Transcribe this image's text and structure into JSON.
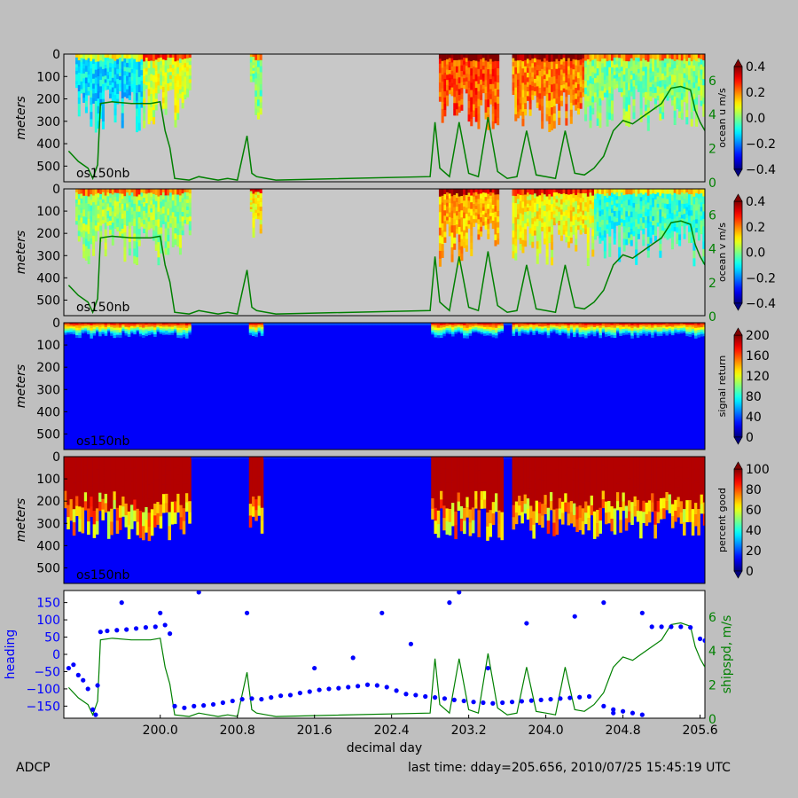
{
  "footer": {
    "left": "ADCP",
    "right": "last time: dday=205.656,  2010/07/25 15:45:19 UTC"
  },
  "colors": {
    "background": "#bfbfbf",
    "nodata": "#c8c8c8",
    "ship_speed": "#008000",
    "heading": "#0000ff"
  },
  "chart_data": [
    {
      "type": "heatmap",
      "panel_label": "os150nb",
      "ylabel": "meters",
      "yticks": [
        "0",
        "100",
        "200",
        "300",
        "400",
        "500"
      ],
      "ylim": [
        570,
        0
      ],
      "colorbar_label": "ocean u m/s",
      "colorbar_ticks": [
        "0.4",
        "0.2",
        "0.0",
        "−0.2",
        "−0.4"
      ],
      "clim": [
        -0.45,
        0.45
      ],
      "colormap": "jet",
      "right_axis_ticks": [
        "0",
        "2",
        "4",
        "6"
      ],
      "right_axis_color": "#008000",
      "coverage": [
        [
          199.12,
          200.3
        ],
        [
          200.93,
          201.04
        ],
        [
          202.89,
          203.5
        ],
        [
          203.65,
          205.65
        ]
      ],
      "note_regions": [
        {
          "x": [
            199.2,
            199.8
          ],
          "sign": "negative"
        },
        {
          "x": [
            202.9,
            203.5
          ],
          "sign": "positive"
        },
        {
          "x": [
            203.7,
            204.4
          ],
          "sign": "positive"
        },
        {
          "x": [
            204.5,
            205.6
          ],
          "sign": "mixed"
        }
      ]
    },
    {
      "type": "heatmap",
      "panel_label": "os150nb",
      "ylabel": "meters",
      "yticks": [
        "0",
        "100",
        "200",
        "300",
        "400",
        "500"
      ],
      "ylim": [
        570,
        0
      ],
      "colorbar_label": "ocean v m/s",
      "colorbar_ticks": [
        "0.4",
        "0.2",
        "0.0",
        "−0.2",
        "−0.4"
      ],
      "clim": [
        -0.45,
        0.45
      ],
      "colormap": "jet",
      "right_axis_ticks": [
        "0",
        "2",
        "4",
        "6"
      ],
      "right_axis_color": "#008000"
    },
    {
      "type": "heatmap",
      "panel_label": "os150nb",
      "ylabel": "meters",
      "yticks": [
        "0",
        "100",
        "200",
        "300",
        "400",
        "500"
      ],
      "ylim": [
        570,
        0
      ],
      "colorbar_label": "signal return",
      "colorbar_ticks": [
        "200",
        "160",
        "120",
        "80",
        "40",
        "0"
      ],
      "clim": [
        0,
        200
      ],
      "colormap": "jet"
    },
    {
      "type": "heatmap",
      "panel_label": "os150nb",
      "ylabel": "meters",
      "yticks": [
        "0",
        "100",
        "200",
        "300",
        "400",
        "500"
      ],
      "ylim": [
        570,
        0
      ],
      "colorbar_label": "percent good",
      "colorbar_ticks": [
        "100",
        "80",
        "60",
        "40",
        "20",
        "0"
      ],
      "clim": [
        0,
        100
      ],
      "colormap": "jet"
    },
    {
      "type": "scatter",
      "xlabel": "decimal day",
      "xticks": [
        "200.0",
        "200.8",
        "201.6",
        "202.4",
        "203.2",
        "204.0",
        "204.8",
        "205.6"
      ],
      "xlim": [
        199.0,
        205.65
      ],
      "ylabel": "heading",
      "ylabel_color": "#0000ff",
      "yticks": [
        "150",
        "100",
        "50",
        "0",
        "−50",
        "−100",
        "−150"
      ],
      "ylim": [
        -185,
        185
      ],
      "ylabel_right": "shipspd, m/s",
      "ylabel_right_color": "#008000",
      "yticks_right": [
        "0",
        "2",
        "4",
        "6"
      ],
      "ylim_right": [
        0,
        7.5
      ],
      "series": [
        {
          "name": "heading",
          "color": "#0000ff",
          "points": [
            [
              199.05,
              -40
            ],
            [
              199.1,
              -30
            ],
            [
              199.15,
              -60
            ],
            [
              199.2,
              -75
            ],
            [
              199.25,
              -100
            ],
            [
              199.3,
              -160
            ],
            [
              199.33,
              -175
            ],
            [
              199.35,
              -90
            ],
            [
              199.38,
              65
            ],
            [
              199.45,
              68
            ],
            [
              199.55,
              70
            ],
            [
              199.65,
              72
            ],
            [
              199.75,
              75
            ],
            [
              199.85,
              78
            ],
            [
              199.95,
              80
            ],
            [
              200.05,
              85
            ],
            [
              200.1,
              60
            ],
            [
              200.15,
              -150
            ],
            [
              200.25,
              -155
            ],
            [
              200.35,
              -150
            ],
            [
              200.45,
              -148
            ],
            [
              200.55,
              -145
            ],
            [
              200.65,
              -140
            ],
            [
              200.75,
              -135
            ],
            [
              200.85,
              -130
            ],
            [
              200.95,
              -128
            ],
            [
              201.05,
              -130
            ],
            [
              201.15,
              -125
            ],
            [
              201.25,
              -120
            ],
            [
              201.35,
              -118
            ],
            [
              201.45,
              -112
            ],
            [
              201.55,
              -108
            ],
            [
              201.65,
              -103
            ],
            [
              201.75,
              -100
            ],
            [
              201.85,
              -98
            ],
            [
              201.95,
              -95
            ],
            [
              202.05,
              -92
            ],
            [
              202.15,
              -88
            ],
            [
              202.25,
              -90
            ],
            [
              202.35,
              -95
            ],
            [
              202.45,
              -105
            ],
            [
              202.55,
              -115
            ],
            [
              202.65,
              -118
            ],
            [
              202.75,
              -122
            ],
            [
              202.85,
              -125
            ],
            [
              202.95,
              -128
            ],
            [
              203.05,
              -132
            ],
            [
              203.15,
              -135
            ],
            [
              203.25,
              -138
            ],
            [
              203.35,
              -140
            ],
            [
              203.45,
              -142
            ],
            [
              203.55,
              -140
            ],
            [
              203.65,
              -138
            ],
            [
              203.75,
              -136
            ],
            [
              203.85,
              -134
            ],
            [
              203.95,
              -132
            ],
            [
              204.05,
              -130
            ],
            [
              204.15,
              -128
            ],
            [
              204.25,
              -126
            ],
            [
              204.35,
              -124
            ],
            [
              204.45,
              -122
            ],
            [
              204.6,
              -150
            ],
            [
              204.7,
              -160
            ],
            [
              204.8,
              -165
            ],
            [
              204.9,
              -170
            ],
            [
              205.0,
              -175
            ],
            [
              205.1,
              80
            ],
            [
              205.2,
              80
            ],
            [
              205.3,
              80
            ],
            [
              205.4,
              80
            ],
            [
              205.5,
              78
            ],
            [
              205.6,
              45
            ],
            [
              205.65,
              40
            ],
            [
              199.6,
              150
            ],
            [
              200.0,
              120
            ],
            [
              200.4,
              180
            ],
            [
              200.9,
              120
            ],
            [
              201.6,
              -40
            ],
            [
              202.0,
              -10
            ],
            [
              202.3,
              120
            ],
            [
              202.6,
              30
            ],
            [
              203.0,
              150
            ],
            [
              203.1,
              180
            ],
            [
              203.4,
              -40
            ],
            [
              203.8,
              90
            ],
            [
              204.3,
              110
            ],
            [
              204.6,
              150
            ],
            [
              204.7,
              -170
            ],
            [
              205.0,
              120
            ]
          ]
        },
        {
          "name": "shipspd",
          "color": "#008000",
          "points": [
            [
              199.05,
              1.8
            ],
            [
              199.15,
              1.2
            ],
            [
              199.25,
              0.8
            ],
            [
              199.3,
              0.2
            ],
            [
              199.35,
              1.0
            ],
            [
              199.38,
              4.6
            ],
            [
              199.5,
              4.7
            ],
            [
              199.7,
              4.6
            ],
            [
              199.9,
              4.6
            ],
            [
              200.0,
              4.7
            ],
            [
              200.05,
              3.0
            ],
            [
              200.1,
              2.0
            ],
            [
              200.15,
              0.2
            ],
            [
              200.3,
              0.1
            ],
            [
              200.4,
              0.3
            ],
            [
              200.5,
              0.2
            ],
            [
              200.6,
              0.1
            ],
            [
              200.7,
              0.2
            ],
            [
              200.8,
              0.1
            ],
            [
              200.9,
              2.7
            ],
            [
              200.95,
              0.5
            ],
            [
              201.0,
              0.3
            ],
            [
              201.1,
              0.2
            ],
            [
              201.2,
              0.1
            ],
            [
              202.8,
              0.3
            ],
            [
              202.85,
              3.5
            ],
            [
              202.9,
              0.8
            ],
            [
              203.0,
              0.3
            ],
            [
              203.1,
              3.5
            ],
            [
              203.2,
              0.5
            ],
            [
              203.3,
              0.3
            ],
            [
              203.4,
              3.8
            ],
            [
              203.5,
              0.6
            ],
            [
              203.6,
              0.2
            ],
            [
              203.7,
              0.3
            ],
            [
              203.8,
              3.0
            ],
            [
              203.9,
              0.4
            ],
            [
              204.0,
              0.3
            ],
            [
              204.1,
              0.2
            ],
            [
              204.2,
              3.0
            ],
            [
              204.3,
              0.5
            ],
            [
              204.4,
              0.4
            ],
            [
              204.5,
              0.8
            ],
            [
              204.6,
              1.5
            ],
            [
              204.7,
              3.0
            ],
            [
              204.8,
              3.6
            ],
            [
              204.9,
              3.4
            ],
            [
              205.0,
              3.8
            ],
            [
              205.1,
              4.2
            ],
            [
              205.2,
              4.6
            ],
            [
              205.3,
              5.5
            ],
            [
              205.4,
              5.6
            ],
            [
              205.5,
              5.4
            ],
            [
              205.55,
              4.2
            ],
            [
              205.6,
              3.5
            ],
            [
              205.65,
              3.0
            ]
          ]
        }
      ]
    }
  ]
}
